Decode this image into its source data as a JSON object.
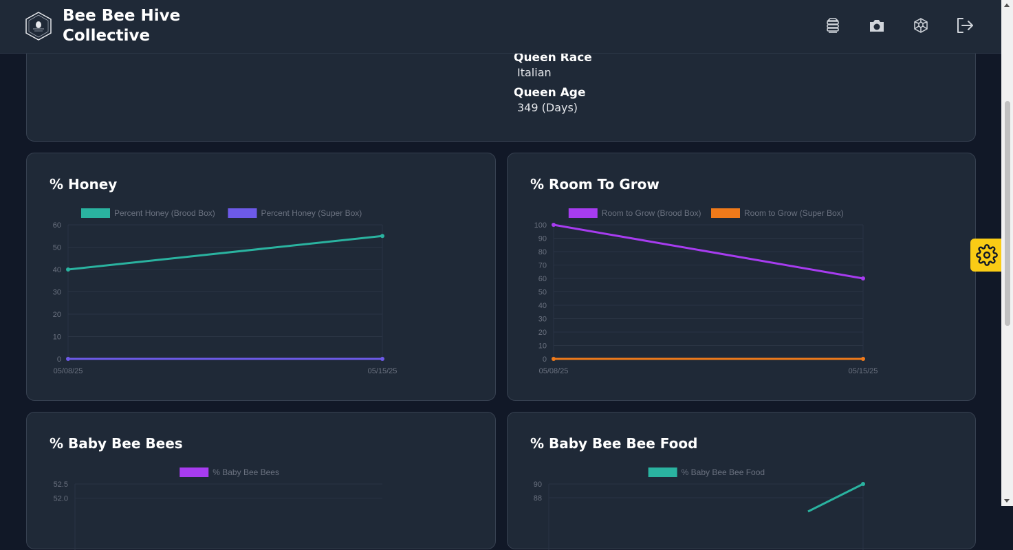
{
  "app": {
    "brand_line1": "Bee Bee Hive",
    "brand_line2": "Collective"
  },
  "header_icons": [
    "hive-icon",
    "camera-icon",
    "honeycomb-icon",
    "logout-icon"
  ],
  "hive_info": [
    {
      "label": "Queen Race",
      "value": "Italian"
    },
    {
      "label": "Queen Age",
      "value": "349 (Days)"
    }
  ],
  "colors": {
    "teal": "#2ab3a0",
    "indigo": "#6d5ae8",
    "purple": "#a73cf0",
    "orange": "#f07a1a",
    "accent_yellow": "#facc15"
  },
  "chart_data": [
    {
      "type": "line",
      "title": "% Honey",
      "categories": [
        "05/08/25",
        "05/15/25"
      ],
      "yticks": [
        0,
        10,
        20,
        30,
        40,
        50,
        60
      ],
      "ylim": [
        0,
        60
      ],
      "series": [
        {
          "name": "Percent Honey (Brood Box)",
          "color": "#2ab3a0",
          "values": [
            40,
            55
          ]
        },
        {
          "name": "Percent Honey (Super Box)",
          "color": "#6d5ae8",
          "values": [
            0,
            0
          ]
        }
      ],
      "legend": "top"
    },
    {
      "type": "line",
      "title": "% Room To Grow",
      "categories": [
        "05/08/25",
        "05/15/25"
      ],
      "yticks": [
        0,
        10,
        20,
        30,
        40,
        50,
        60,
        70,
        80,
        90,
        100
      ],
      "ylim": [
        0,
        100
      ],
      "series": [
        {
          "name": "Room to Grow (Brood Box)",
          "color": "#a73cf0",
          "values": [
            100,
            60
          ]
        },
        {
          "name": "Room to Grow (Super Box)",
          "color": "#f07a1a",
          "values": [
            0,
            0
          ]
        }
      ],
      "legend": "top"
    },
    {
      "type": "line",
      "title": "% Baby Bee Bees",
      "categories": [],
      "yticks": [
        52.0,
        52.5
      ],
      "ylim": [
        51.5,
        52.5
      ],
      "series": [
        {
          "name": "% Baby Bee Bees",
          "color": "#a73cf0",
          "values": []
        }
      ],
      "legend": "top"
    },
    {
      "type": "line",
      "title": "% Baby Bee Bee Food",
      "categories": [
        "",
        ""
      ],
      "yticks": [
        88,
        90
      ],
      "ylim": [
        86,
        90
      ],
      "series": [
        {
          "name": "% Baby Bee Bee Food",
          "color": "#2ab3a0",
          "values": [
            null,
            90
          ]
        }
      ],
      "legend": "top"
    }
  ]
}
